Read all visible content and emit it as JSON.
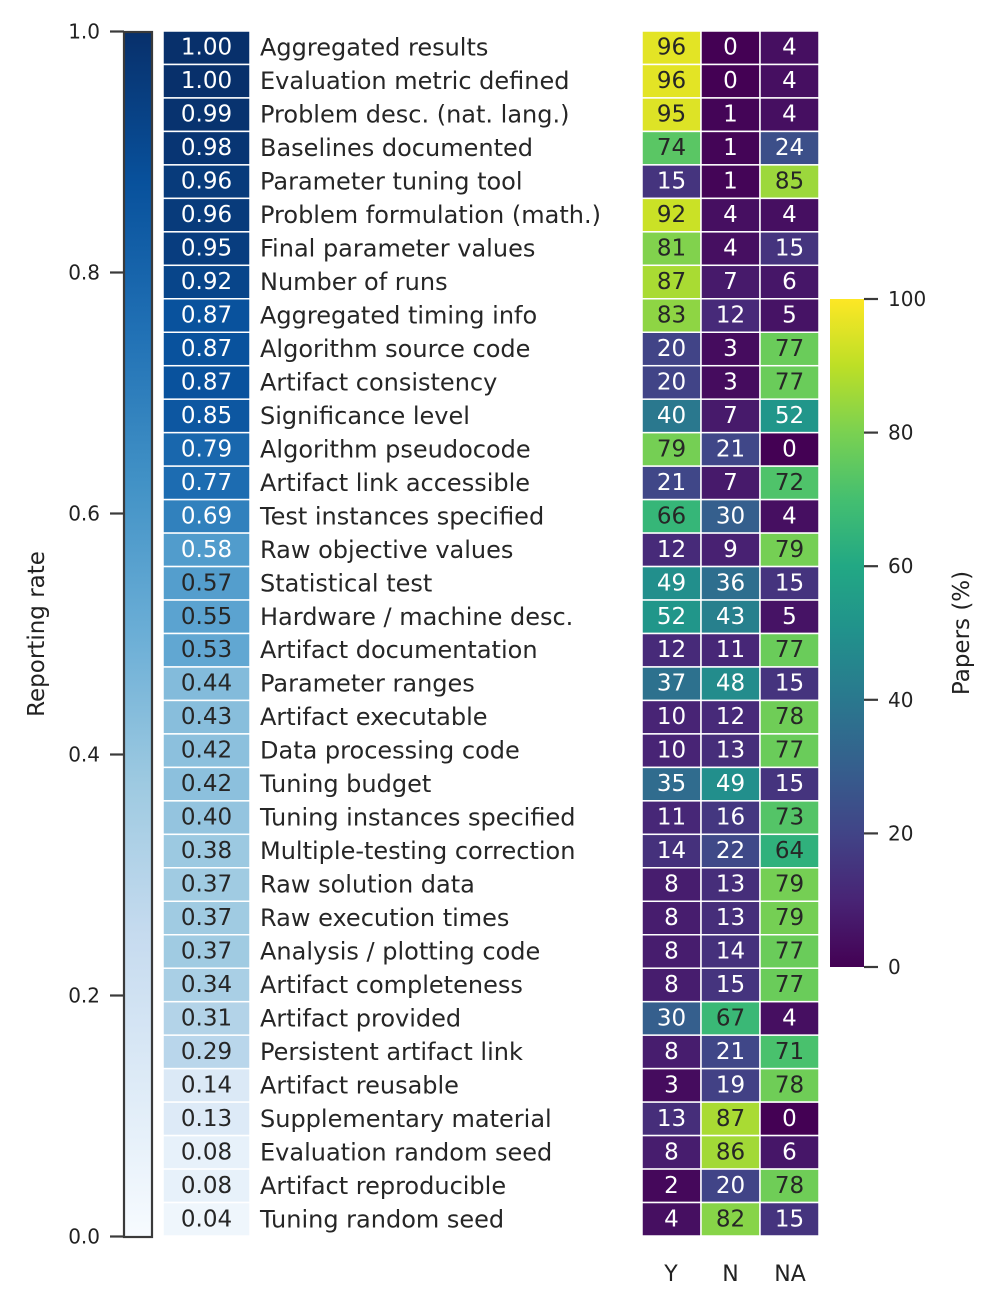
{
  "chart_data": {
    "type": "heatmap",
    "left_panel": {
      "title": "",
      "colorbar_label": "Reporting rate",
      "colorbar_ticks": [
        "0.0",
        "0.2",
        "0.4",
        "0.6",
        "0.8",
        "1.0"
      ],
      "colorbar_range": [
        0,
        1
      ],
      "colormap": "Blues"
    },
    "right_panel": {
      "columns": [
        "Y",
        "N",
        "NA"
      ],
      "colorbar_label": "Papers (%)",
      "colorbar_ticks": [
        "0",
        "20",
        "40",
        "60",
        "80",
        "100"
      ],
      "colorbar_range": [
        0,
        100
      ],
      "colormap": "viridis"
    },
    "rows": [
      {
        "label": "Aggregated results",
        "rate": "1.00",
        "y": 96,
        "n": 0,
        "na": 4
      },
      {
        "label": "Evaluation metric defined",
        "rate": "1.00",
        "y": 96,
        "n": 0,
        "na": 4
      },
      {
        "label": "Problem desc. (nat. lang.)",
        "rate": "0.99",
        "y": 95,
        "n": 1,
        "na": 4
      },
      {
        "label": "Baselines documented",
        "rate": "0.98",
        "y": 74,
        "n": 1,
        "na": 24
      },
      {
        "label": "Parameter tuning tool",
        "rate": "0.96",
        "y": 15,
        "n": 1,
        "na": 85
      },
      {
        "label": "Problem formulation (math.)",
        "rate": "0.96",
        "y": 92,
        "n": 4,
        "na": 4
      },
      {
        "label": "Final parameter values",
        "rate": "0.95",
        "y": 81,
        "n": 4,
        "na": 15
      },
      {
        "label": "Number of runs",
        "rate": "0.92",
        "y": 87,
        "n": 7,
        "na": 6
      },
      {
        "label": "Aggregated timing info",
        "rate": "0.87",
        "y": 83,
        "n": 12,
        "na": 5
      },
      {
        "label": "Algorithm source code",
        "rate": "0.87",
        "y": 20,
        "n": 3,
        "na": 77
      },
      {
        "label": "Artifact consistency",
        "rate": "0.87",
        "y": 20,
        "n": 3,
        "na": 77
      },
      {
        "label": "Significance level",
        "rate": "0.85",
        "y": 40,
        "n": 7,
        "na": 52
      },
      {
        "label": "Algorithm pseudocode",
        "rate": "0.79",
        "y": 79,
        "n": 21,
        "na": 0
      },
      {
        "label": "Artifact link accessible",
        "rate": "0.77",
        "y": 21,
        "n": 7,
        "na": 72
      },
      {
        "label": "Test instances specified",
        "rate": "0.69",
        "y": 66,
        "n": 30,
        "na": 4
      },
      {
        "label": "Raw objective values",
        "rate": "0.58",
        "y": 12,
        "n": 9,
        "na": 79
      },
      {
        "label": "Statistical test",
        "rate": "0.57",
        "y": 49,
        "n": 36,
        "na": 15
      },
      {
        "label": "Hardware / machine desc.",
        "rate": "0.55",
        "y": 52,
        "n": 43,
        "na": 5
      },
      {
        "label": "Artifact documentation",
        "rate": "0.53",
        "y": 12,
        "n": 11,
        "na": 77
      },
      {
        "label": "Parameter ranges",
        "rate": "0.44",
        "y": 37,
        "n": 48,
        "na": 15
      },
      {
        "label": "Artifact executable",
        "rate": "0.43",
        "y": 10,
        "n": 12,
        "na": 78
      },
      {
        "label": "Data processing code",
        "rate": "0.42",
        "y": 10,
        "n": 13,
        "na": 77
      },
      {
        "label": "Tuning budget",
        "rate": "0.42",
        "y": 35,
        "n": 49,
        "na": 15
      },
      {
        "label": "Tuning instances specified",
        "rate": "0.40",
        "y": 11,
        "n": 16,
        "na": 73
      },
      {
        "label": "Multiple-testing correction",
        "rate": "0.38",
        "y": 14,
        "n": 22,
        "na": 64
      },
      {
        "label": "Raw solution data",
        "rate": "0.37",
        "y": 8,
        "n": 13,
        "na": 79
      },
      {
        "label": "Raw execution times",
        "rate": "0.37",
        "y": 8,
        "n": 13,
        "na": 79
      },
      {
        "label": "Analysis / plotting code",
        "rate": "0.37",
        "y": 8,
        "n": 14,
        "na": 77
      },
      {
        "label": "Artifact completeness",
        "rate": "0.34",
        "y": 8,
        "n": 15,
        "na": 77
      },
      {
        "label": "Artifact provided",
        "rate": "0.31",
        "y": 30,
        "n": 67,
        "na": 4
      },
      {
        "label": "Persistent artifact link",
        "rate": "0.29",
        "y": 8,
        "n": 21,
        "na": 71
      },
      {
        "label": "Artifact reusable",
        "rate": "0.14",
        "y": 3,
        "n": 19,
        "na": 78
      },
      {
        "label": "Supplementary material",
        "rate": "0.13",
        "y": 13,
        "n": 87,
        "na": 0
      },
      {
        "label": "Evaluation random seed",
        "rate": "0.08",
        "y": 8,
        "n": 86,
        "na": 6
      },
      {
        "label": "Artifact reproducible",
        "rate": "0.08",
        "y": 2,
        "n": 20,
        "na": 78
      },
      {
        "label": "Tuning random seed",
        "rate": "0.04",
        "y": 4,
        "n": 82,
        "na": 15
      }
    ]
  }
}
